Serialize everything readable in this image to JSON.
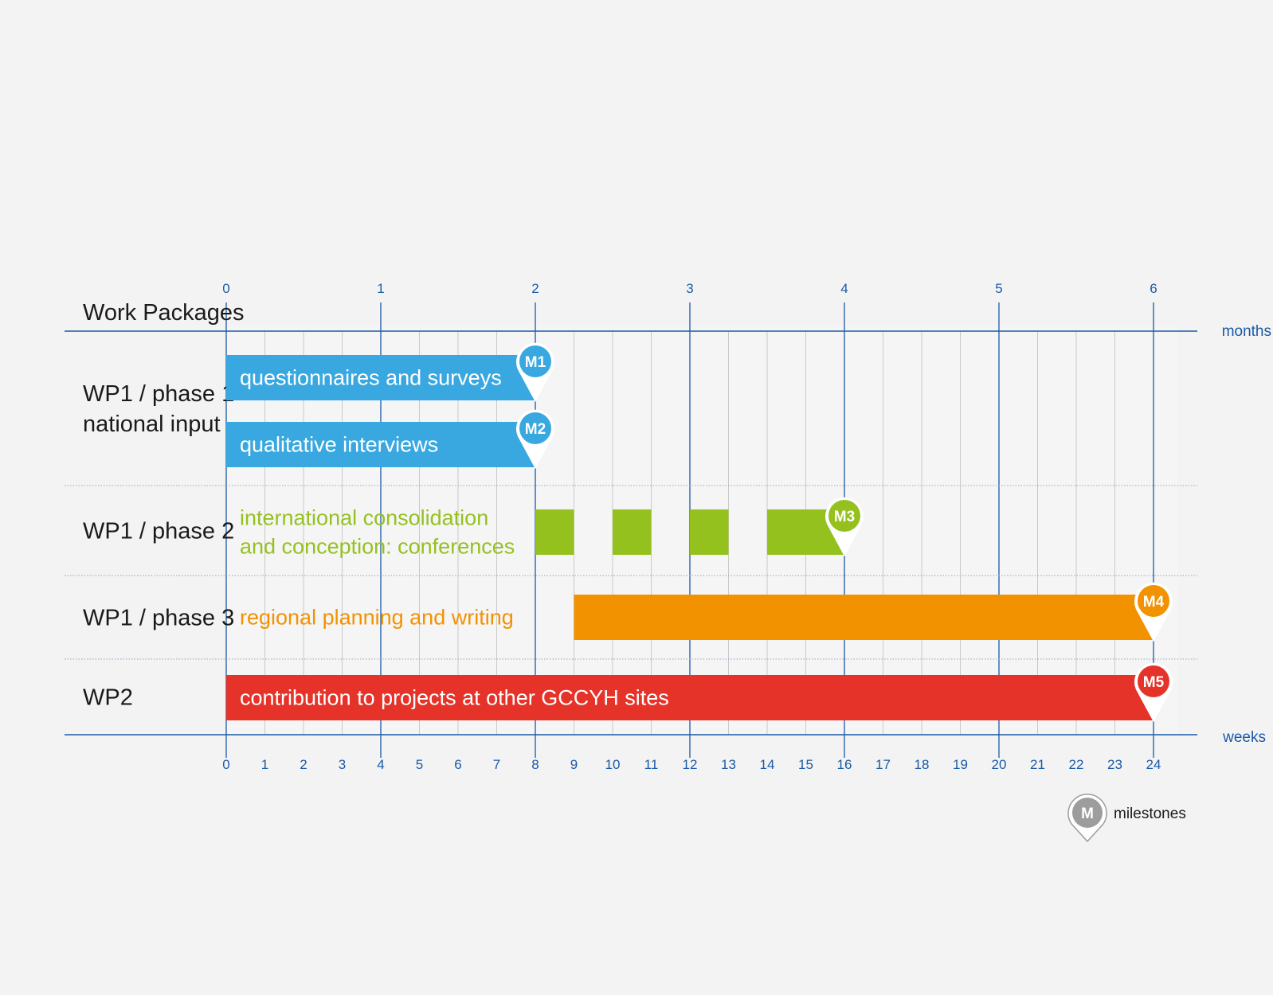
{
  "colors": {
    "blue": "#39a8e0",
    "green": "#95c11f",
    "orange": "#f39200",
    "red": "#e6332a",
    "grey": "#9d9d9d",
    "axis": "#1a5aa8"
  },
  "chart_data": {
    "type": "gantt",
    "xlabel_top": "months",
    "xlabel_bottom": "weeks",
    "header": "Work Packages",
    "weeks_range": [
      0,
      24
    ],
    "month_ticks": [
      "0",
      "1",
      "2",
      "3",
      "4",
      "5",
      "6"
    ],
    "week_ticks": [
      "0",
      "1",
      "2",
      "3",
      "4",
      "5",
      "6",
      "7",
      "8",
      "9",
      "10",
      "11",
      "12",
      "13",
      "14",
      "15",
      "16",
      "17",
      "18",
      "19",
      "20",
      "21",
      "22",
      "23",
      "24"
    ],
    "rows": [
      {
        "label_lines": [
          "WP1 /  phase 1",
          "national input"
        ]
      },
      {
        "label_lines": [
          "WP1 / phase 2"
        ]
      },
      {
        "label_lines": [
          "WP1 / phase 3"
        ]
      },
      {
        "label_lines": [
          "WP2"
        ]
      }
    ],
    "tasks": [
      {
        "row": 0,
        "label": [
          "questionnaires and surveys"
        ],
        "color": "blue",
        "label_inside": true,
        "segments": [
          [
            0,
            8
          ]
        ],
        "milestone": "M1"
      },
      {
        "row": 0,
        "label": [
          "qualitative interviews"
        ],
        "color": "blue",
        "label_inside": true,
        "segments": [
          [
            0,
            8
          ]
        ],
        "milestone": "M2"
      },
      {
        "row": 1,
        "label": [
          "international consolidation",
          "and conception: conferences"
        ],
        "color": "green",
        "label_inside": false,
        "segments": [
          [
            8,
            9
          ],
          [
            10,
            11
          ],
          [
            12,
            13
          ],
          [
            14,
            16
          ]
        ],
        "milestone": "M3"
      },
      {
        "row": 2,
        "label": [
          "regional planning and writing"
        ],
        "color": "orange",
        "label_inside": false,
        "segments": [
          [
            9,
            24
          ]
        ],
        "milestone": "M4"
      },
      {
        "row": 3,
        "label": [
          "contribution to projects at other GCCYH sites"
        ],
        "color": "red",
        "label_inside": true,
        "segments": [
          [
            0,
            24
          ]
        ],
        "milestone": "M5"
      }
    ],
    "legend": {
      "symbol": "M",
      "label": "milestones",
      "color": "grey"
    }
  }
}
